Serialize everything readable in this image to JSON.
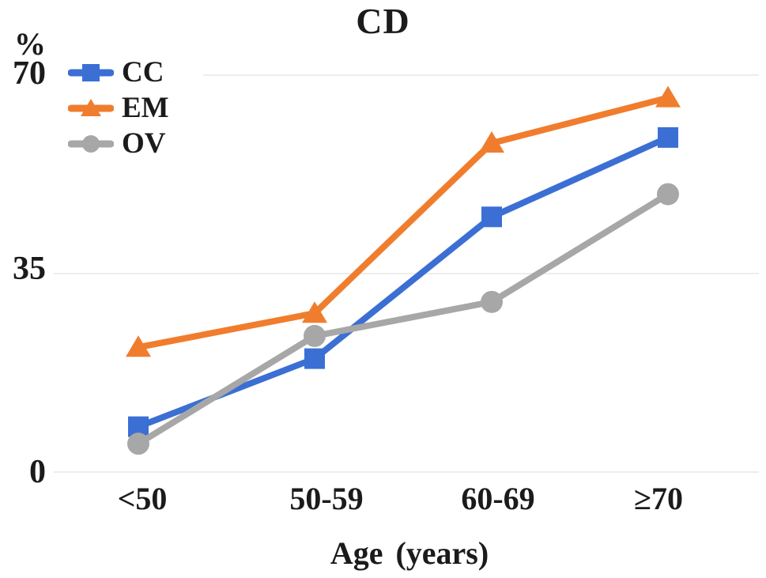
{
  "chart_data": {
    "type": "line",
    "title": "CD",
    "ylabel": "%",
    "xlabel": "Age (years)",
    "categories": [
      "<50",
      "50-59",
      "60-69",
      "≥70"
    ],
    "yticks": [
      "0",
      "35",
      "70"
    ],
    "ylim": [
      0,
      70
    ],
    "grid": "horizontal gridlines at y = 0, 35, 70",
    "gridline_color": "#ededed",
    "legend_position": "top-left inside plot area",
    "text_color": "#1b1b1b",
    "series": [
      {
        "name": "CC",
        "marker": "square",
        "color": "#3b6fd4",
        "values": [
          8,
          20,
          45,
          59
        ]
      },
      {
        "name": "EM",
        "marker": "triangle",
        "color": "#f07d2d",
        "values": [
          22,
          28,
          58,
          66
        ]
      },
      {
        "name": "OV",
        "marker": "circle",
        "color": "#a7a7a7",
        "values": [
          5,
          24,
          30,
          49
        ]
      }
    ]
  }
}
